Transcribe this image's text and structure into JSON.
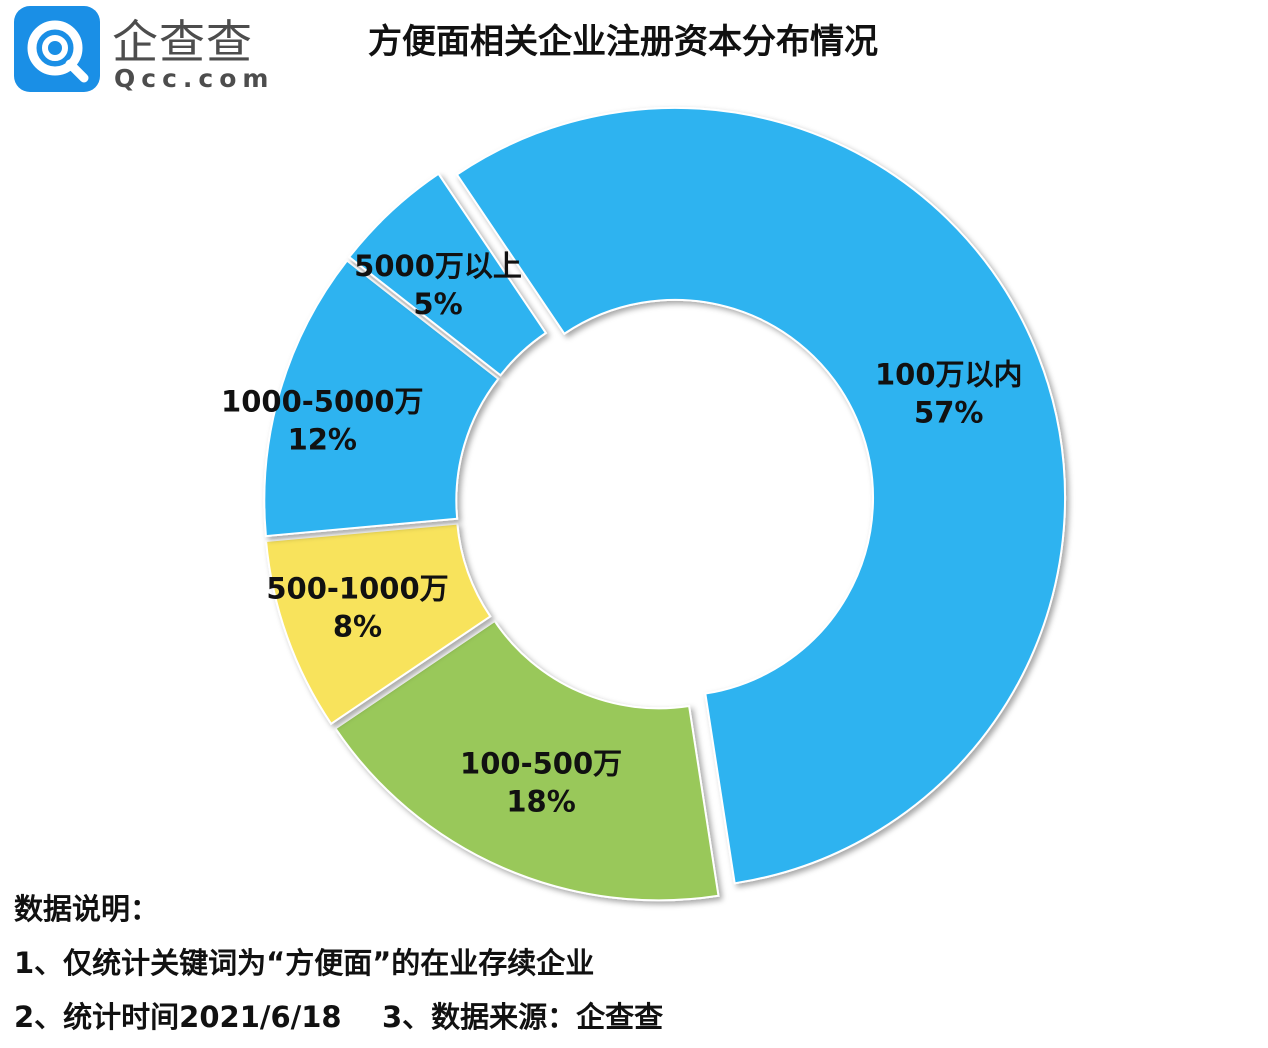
{
  "logo": {
    "cn": "企查查",
    "en": "Qcc.com"
  },
  "title": "方便面相关企业注册资本分布情况",
  "chart_data": {
    "type": "pie",
    "title": "方便面相关企业注册资本分布情况",
    "slices": [
      {
        "label": "100万以内",
        "value": 57,
        "display": "57%",
        "color": "#2db3f0"
      },
      {
        "label": "100-500万",
        "value": 18,
        "display": "18%",
        "color": "#99c85a"
      },
      {
        "label": "500-1000万",
        "value": 8,
        "display": "8%",
        "color": "#f8e35c"
      },
      {
        "label": "1000-5000万",
        "value": 12,
        "display": "12%",
        "color": "#2db3f0"
      },
      {
        "label": "5000万以上",
        "value": 5,
        "display": "5%",
        "color": "#2db3f0"
      }
    ]
  },
  "notes": {
    "heading": "数据说明：",
    "line1": "1、仅统计关键词为“方便面”的在业存续企业",
    "line2": "2、统计时间2021/6/18    3、数据来源：企查查"
  }
}
